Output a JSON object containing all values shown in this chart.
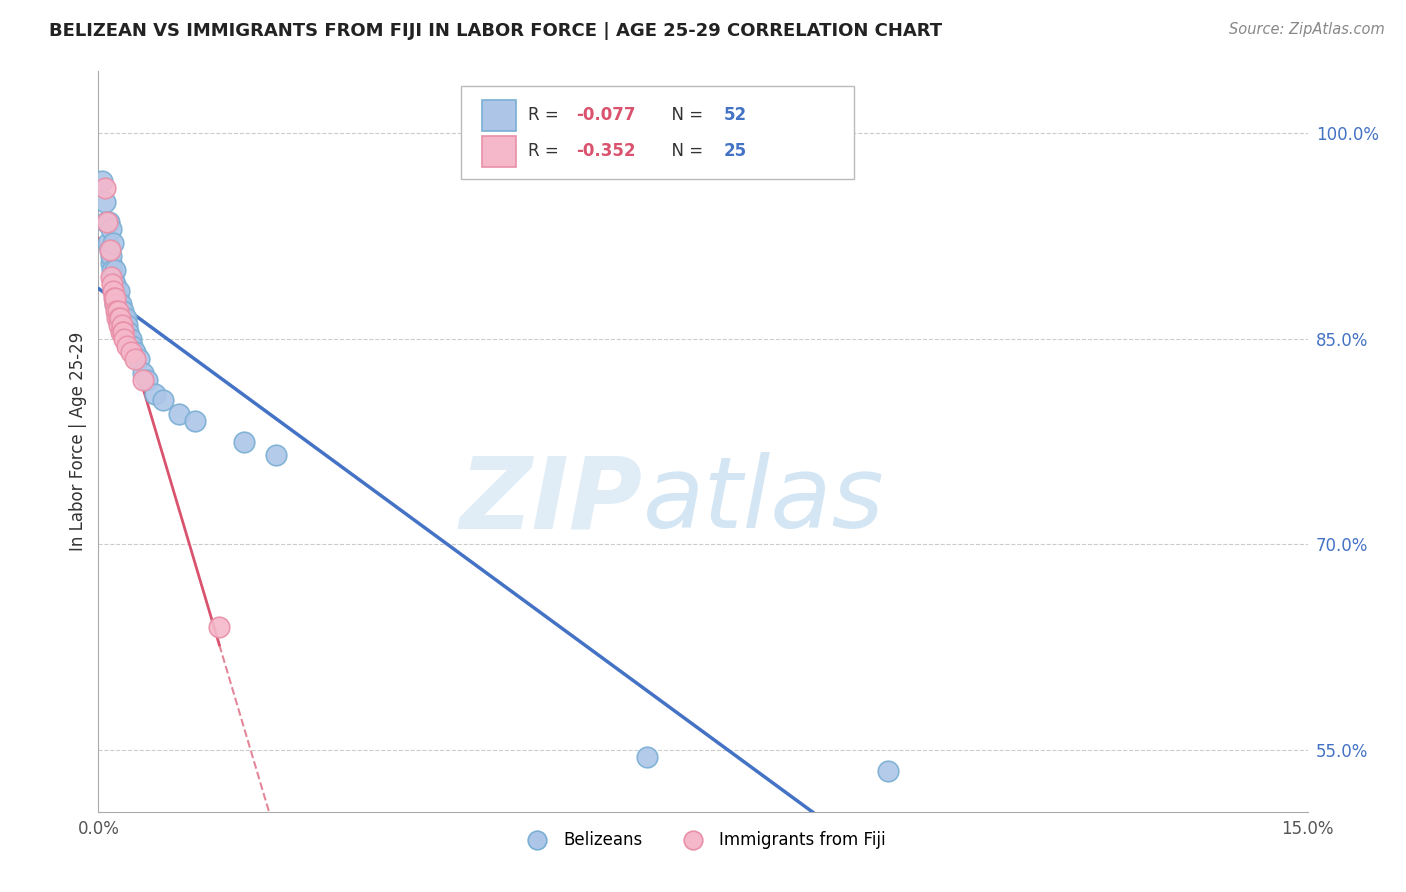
{
  "title": "BELIZEAN VS IMMIGRANTS FROM FIJI IN LABOR FORCE | AGE 25-29 CORRELATION CHART",
  "source": "Source: ZipAtlas.com",
  "ylabel": "In Labor Force | Age 25-29",
  "watermark_zip": "ZIP",
  "watermark_atlas": "atlas",
  "blue_label": "Belizeans",
  "pink_label": "Immigrants from Fiji",
  "blue_R": -0.077,
  "blue_N": 52,
  "pink_R": -0.352,
  "pink_N": 25,
  "blue_color": "#adc6e8",
  "pink_color": "#f5b8cb",
  "blue_edge": "#7aafd4",
  "pink_edge": "#e890a8",
  "trend_blue": "#4472c4",
  "trend_pink": "#d9536f",
  "legend_R_color": "#d9536f",
  "legend_N_color": "#4472c4",
  "blue_x": [
    0.05,
    0.08,
    0.1,
    0.12,
    0.13,
    0.14,
    0.15,
    0.15,
    0.16,
    0.17,
    0.18,
    0.18,
    0.19,
    0.2,
    0.2,
    0.21,
    0.21,
    0.22,
    0.22,
    0.23,
    0.24,
    0.25,
    0.25,
    0.26,
    0.27,
    0.28,
    0.28,
    0.29,
    0.3,
    0.3,
    0.31,
    0.32,
    0.33,
    0.34,
    0.35,
    0.36,
    0.37,
    0.38,
    0.4,
    0.42,
    0.45,
    0.5,
    0.55,
    0.6,
    0.7,
    0.8,
    1.0,
    1.2,
    1.8,
    2.2,
    6.8,
    9.8
  ],
  "blue_y": [
    96.5,
    95.0,
    93.5,
    92.0,
    93.5,
    91.5,
    90.5,
    93.0,
    91.0,
    90.0,
    89.5,
    92.0,
    88.5,
    90.0,
    87.5,
    89.0,
    88.0,
    87.5,
    88.5,
    87.5,
    88.0,
    87.0,
    88.5,
    87.5,
    87.0,
    86.5,
    87.5,
    86.5,
    87.0,
    86.0,
    86.5,
    86.0,
    85.5,
    86.5,
    85.0,
    86.0,
    85.5,
    85.0,
    85.0,
    84.5,
    84.0,
    83.5,
    82.5,
    82.0,
    81.0,
    80.5,
    79.5,
    79.0,
    77.5,
    76.5,
    54.5,
    53.5
  ],
  "pink_x": [
    0.08,
    0.11,
    0.14,
    0.16,
    0.17,
    0.18,
    0.19,
    0.2,
    0.21,
    0.22,
    0.23,
    0.24,
    0.25,
    0.26,
    0.27,
    0.28,
    0.29,
    0.3,
    0.31,
    0.32,
    0.35,
    0.4,
    0.45,
    0.55,
    1.5
  ],
  "pink_y": [
    96.0,
    93.5,
    91.5,
    89.5,
    89.0,
    88.5,
    88.0,
    87.5,
    88.0,
    87.0,
    86.5,
    87.0,
    86.5,
    86.0,
    86.5,
    85.5,
    86.0,
    85.5,
    85.5,
    85.0,
    84.5,
    84.0,
    83.5,
    82.0,
    64.0
  ],
  "xlim": [
    0.0,
    15.0
  ],
  "ylim": [
    50.5,
    104.5
  ],
  "yticks": [
    55.0,
    70.0,
    85.0,
    100.0
  ],
  "ytick_labels": [
    "55.0%",
    "70.0%",
    "85.0%",
    "100.0%"
  ],
  "grid_color": "#cccccc",
  "background_color": "#ffffff",
  "figsize": [
    14.06,
    8.92
  ],
  "dpi": 100
}
